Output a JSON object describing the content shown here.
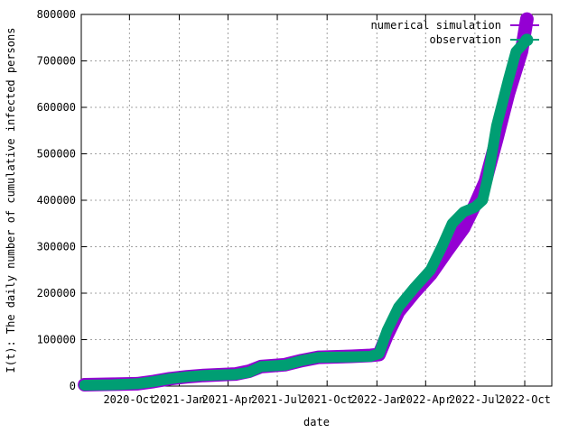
{
  "chart_data": {
    "type": "line",
    "xlabel": "date",
    "ylabel": "I(t): The daily number of cumulative infected persons",
    "x_range": [
      "2020-07-04",
      "2022-11-20"
    ],
    "ylim": [
      0,
      800000
    ],
    "grid": true,
    "legend_position": "top-right",
    "x_ticks": [
      {
        "date": "2020-10-01",
        "label": "2020-Oct"
      },
      {
        "date": "2021-01-01",
        "label": "2021-Jan"
      },
      {
        "date": "2021-04-01",
        "label": "2021-Apr"
      },
      {
        "date": "2021-07-01",
        "label": "2021-Jul"
      },
      {
        "date": "2021-10-01",
        "label": "2021-Oct"
      },
      {
        "date": "2022-01-01",
        "label": "2022-Jan"
      },
      {
        "date": "2022-04-01",
        "label": "2022-Apr"
      },
      {
        "date": "2022-07-01",
        "label": "2022-Jul"
      },
      {
        "date": "2022-10-01",
        "label": "2022-Oct"
      }
    ],
    "y_ticks": [
      0,
      100000,
      200000,
      300000,
      400000,
      500000,
      600000,
      700000,
      800000
    ],
    "series": [
      {
        "name": "numerical simulation",
        "color": "#9400d3",
        "points": [
          [
            "2020-07-10",
            3000
          ],
          [
            "2020-09-01",
            4000
          ],
          [
            "2020-10-15",
            5000
          ],
          [
            "2020-11-15",
            10000
          ],
          [
            "2020-12-15",
            16000
          ],
          [
            "2021-01-15",
            20000
          ],
          [
            "2021-02-15",
            23000
          ],
          [
            "2021-04-15",
            26000
          ],
          [
            "2021-05-10",
            32000
          ],
          [
            "2021-06-01",
            42000
          ],
          [
            "2021-07-15",
            46000
          ],
          [
            "2021-08-15",
            55000
          ],
          [
            "2021-09-15",
            62000
          ],
          [
            "2021-11-15",
            64000
          ],
          [
            "2021-12-20",
            66000
          ],
          [
            "2022-01-05",
            68000
          ],
          [
            "2022-01-20",
            110000
          ],
          [
            "2022-02-10",
            160000
          ],
          [
            "2022-03-10",
            200000
          ],
          [
            "2022-04-10",
            240000
          ],
          [
            "2022-05-10",
            290000
          ],
          [
            "2022-06-10",
            340000
          ],
          [
            "2022-07-01",
            390000
          ],
          [
            "2022-07-20",
            440000
          ],
          [
            "2022-08-10",
            530000
          ],
          [
            "2022-09-01",
            630000
          ],
          [
            "2022-09-25",
            720000
          ],
          [
            "2022-10-05",
            790000
          ]
        ]
      },
      {
        "name": "observation",
        "color": "#009e73",
        "points": [
          [
            "2020-07-10",
            2000
          ],
          [
            "2020-09-01",
            3000
          ],
          [
            "2020-10-15",
            5000
          ],
          [
            "2020-11-15",
            10000
          ],
          [
            "2020-12-15",
            16000
          ],
          [
            "2021-01-15",
            20000
          ],
          [
            "2021-02-15",
            23000
          ],
          [
            "2021-04-15",
            25000
          ],
          [
            "2021-05-10",
            30000
          ],
          [
            "2021-06-01",
            42000
          ],
          [
            "2021-07-15",
            45000
          ],
          [
            "2021-08-15",
            55000
          ],
          [
            "2021-09-15",
            62000
          ],
          [
            "2021-11-15",
            63000
          ],
          [
            "2021-12-20",
            64000
          ],
          [
            "2022-01-05",
            70000
          ],
          [
            "2022-01-20",
            120000
          ],
          [
            "2022-02-10",
            170000
          ],
          [
            "2022-03-10",
            210000
          ],
          [
            "2022-04-10",
            250000
          ],
          [
            "2022-05-01",
            300000
          ],
          [
            "2022-05-20",
            350000
          ],
          [
            "2022-06-10",
            375000
          ],
          [
            "2022-07-01",
            385000
          ],
          [
            "2022-07-15",
            400000
          ],
          [
            "2022-07-25",
            450000
          ],
          [
            "2022-08-10",
            560000
          ],
          [
            "2022-09-01",
            660000
          ],
          [
            "2022-09-15",
            720000
          ],
          [
            "2022-10-05",
            745000
          ]
        ]
      }
    ]
  }
}
